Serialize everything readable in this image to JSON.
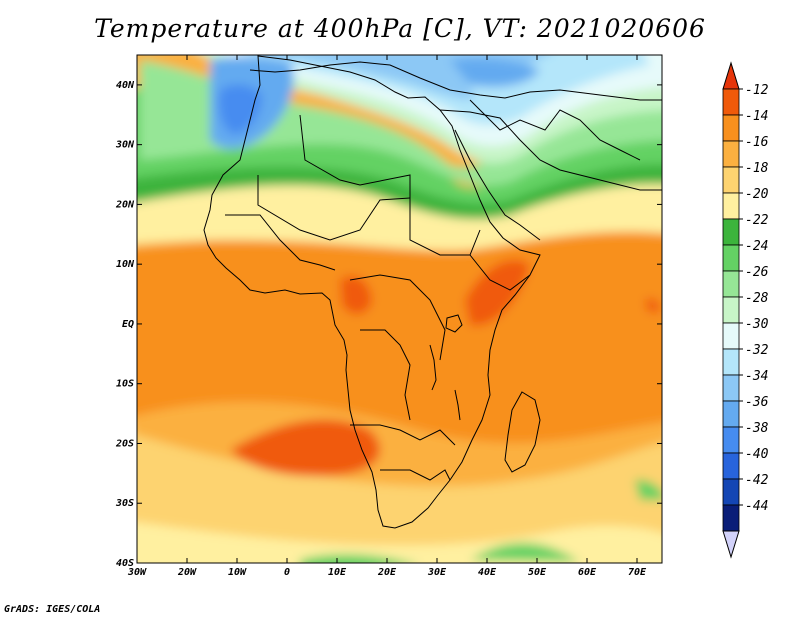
{
  "title": "Temperature at 400hPa [C], VT: 2021020606",
  "credit": "GrADS: IGES/COLA",
  "map": {
    "lon_range": [
      -30,
      75
    ],
    "lat_range": [
      -40,
      45
    ],
    "lon_ticks": [
      {
        "value": -30,
        "label": "30W"
      },
      {
        "value": -20,
        "label": "20W"
      },
      {
        "value": -10,
        "label": "10W"
      },
      {
        "value": 0,
        "label": "0"
      },
      {
        "value": 10,
        "label": "10E"
      },
      {
        "value": 20,
        "label": "20E"
      },
      {
        "value": 30,
        "label": "30E"
      },
      {
        "value": 40,
        "label": "40E"
      },
      {
        "value": 50,
        "label": "50E"
      },
      {
        "value": 60,
        "label": "60E"
      },
      {
        "value": 70,
        "label": "70E"
      }
    ],
    "lat_ticks": [
      {
        "value": 40,
        "label": "40N"
      },
      {
        "value": 30,
        "label": "30N"
      },
      {
        "value": 20,
        "label": "20N"
      },
      {
        "value": 10,
        "label": "10N"
      },
      {
        "value": 0,
        "label": "EQ"
      },
      {
        "value": -10,
        "label": "10S"
      },
      {
        "value": -20,
        "label": "20S"
      },
      {
        "value": -30,
        "label": "30S"
      },
      {
        "value": -40,
        "label": "40S"
      }
    ]
  },
  "colorbar": {
    "levels": [
      "-12",
      "-14",
      "-16",
      "-18",
      "-20",
      "-22",
      "-24",
      "-26",
      "-28",
      "-30",
      "-32",
      "-34",
      "-36",
      "-38",
      "-40",
      "-42",
      "-44"
    ],
    "colors": [
      "#f05a0a",
      "#f8901e",
      "#fbb040",
      "#fdd370",
      "#fff0a0",
      "#3cb43c",
      "#64d264",
      "#96e696",
      "#c8f5c8",
      "#e6fafa",
      "#b4e6fa",
      "#8cc8f5",
      "#64aaf0",
      "#468cf0",
      "#2864dc",
      "#1446b4",
      "#0a1e78"
    ],
    "top_arrow_color": "#e6350a",
    "bottom_arrow_color": "#d2d2fa"
  }
}
